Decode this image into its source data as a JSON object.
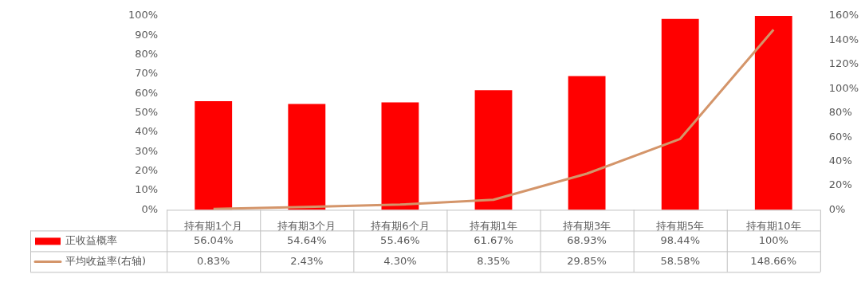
{
  "chart_data": {
    "type": "bar",
    "categories": [
      "持有期1个月",
      "持有期3个月",
      "持有期6个月",
      "持有期1年",
      "持有期3年",
      "持有期5年",
      "持有期10年"
    ],
    "series": [
      {
        "name": "正收益概率",
        "color": "#ff0000",
        "values": [
          56.04,
          54.64,
          55.46,
          61.67,
          68.93,
          98.44,
          100
        ],
        "value_labels": [
          "56.04%",
          "54.64%",
          "55.46%",
          "61.67%",
          "68.93%",
          "98.44%",
          "100%"
        ]
      },
      {
        "name": "平均收益率(右轴)",
        "type": "line",
        "axis": "y2",
        "color": "#d4956a",
        "marker": "none",
        "line_style": "solid",
        "values": [
          0.83,
          2.43,
          4.3,
          8.35,
          29.85,
          58.58,
          148.66
        ],
        "value_labels": [
          "0.83%",
          "2.43%",
          "4.30%",
          "8.35%",
          "29.85%",
          "58.58%",
          "148.66%"
        ]
      }
    ],
    "ylim": [
      0,
      100
    ],
    "yticks": [
      {
        "value": 0,
        "label": "0%"
      },
      {
        "value": 10,
        "label": "10%"
      },
      {
        "value": 20,
        "label": "20%"
      },
      {
        "value": 30,
        "label": "30%"
      },
      {
        "value": 40,
        "label": "40%"
      },
      {
        "value": 50,
        "label": "50%"
      },
      {
        "value": 60,
        "label": "60%"
      },
      {
        "value": 70,
        "label": "70%"
      },
      {
        "value": 80,
        "label": "80%"
      },
      {
        "value": 90,
        "label": "90%"
      },
      {
        "value": 100,
        "label": "100%"
      }
    ],
    "y2lim": [
      0,
      160
    ],
    "y2ticks": [
      {
        "value": 0,
        "label": "0%"
      },
      {
        "value": 20,
        "label": "20%"
      },
      {
        "value": 40,
        "label": "40%"
      },
      {
        "value": 60,
        "label": "60%"
      },
      {
        "value": 80,
        "label": "80%"
      },
      {
        "value": 100,
        "label": "100%"
      },
      {
        "value": 120,
        "label": "120%"
      },
      {
        "value": 140,
        "label": "140%"
      },
      {
        "value": 160,
        "label": "160%"
      }
    ],
    "grid": false,
    "legend": "bottom left"
  }
}
